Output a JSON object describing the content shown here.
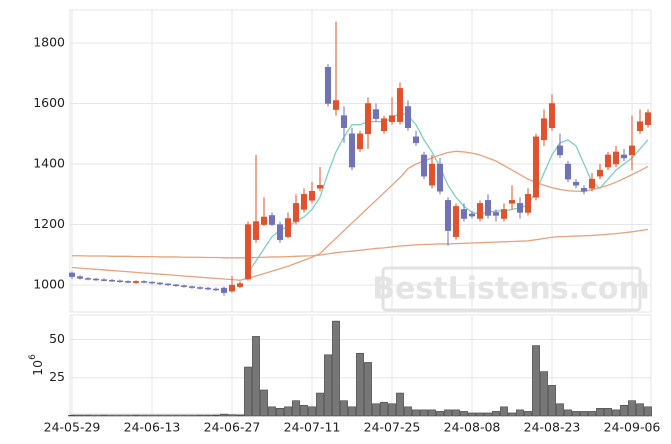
{
  "chart_data": {
    "type": "candlestick",
    "watermark": "BestListens.com",
    "up_color": "#e0522a",
    "down_color": "#6f72b6",
    "grid": true,
    "categories": [
      "24-05-29",
      null,
      null,
      null,
      null,
      null,
      null,
      null,
      null,
      null,
      "24-06-13",
      null,
      null,
      null,
      null,
      null,
      null,
      null,
      null,
      null,
      "24-06-27",
      null,
      null,
      null,
      null,
      null,
      null,
      null,
      null,
      null,
      "24-07-11",
      null,
      null,
      null,
      null,
      null,
      null,
      null,
      null,
      null,
      "24-07-25",
      null,
      null,
      null,
      null,
      null,
      null,
      null,
      null,
      null,
      "24-08-08",
      null,
      null,
      null,
      null,
      null,
      null,
      null,
      null,
      null,
      "24-08-23",
      null,
      null,
      null,
      null,
      null,
      null,
      null,
      null,
      null,
      "24-09-06",
      null,
      null
    ],
    "open": [
      1040,
      1028,
      1022,
      1020,
      1018,
      1016,
      1014,
      1012,
      1008,
      1012,
      1010,
      1007,
      1004,
      1001,
      998,
      995,
      992,
      990,
      987,
      990,
      980,
      995,
      1020,
      1150,
      1200,
      1230,
      1200,
      1160,
      1210,
      1250,
      1280,
      1320,
      1720,
      1580,
      1560,
      1500,
      1450,
      1500,
      1580,
      1510,
      1540,
      1540,
      1590,
      1490,
      1430,
      1330,
      1400,
      1280,
      1160,
      1250,
      1235,
      1220,
      1280,
      1240,
      1220,
      1270,
      1270,
      1240,
      1290,
      1480,
      1520,
      1460,
      1400,
      1340,
      1320,
      1320,
      1360,
      1390,
      1400,
      1430,
      1430,
      1510,
      1530
    ],
    "high": [
      1045,
      1032,
      1026,
      1024,
      1022,
      1020,
      1018,
      1016,
      1016,
      1016,
      1012,
      1010,
      1006,
      1004,
      1002,
      998,
      996,
      994,
      992,
      995,
      1030,
      1012,
      1210,
      1430,
      1290,
      1240,
      1210,
      1240,
      1300,
      1320,
      1340,
      1390,
      1730,
      1870,
      1590,
      1520,
      1510,
      1620,
      1600,
      1560,
      1620,
      1670,
      1610,
      1510,
      1440,
      1430,
      1420,
      1290,
      1270,
      1270,
      1245,
      1280,
      1300,
      1250,
      1270,
      1330,
      1290,
      1320,
      1500,
      1580,
      1630,
      1500,
      1410,
      1350,
      1330,
      1370,
      1400,
      1440,
      1460,
      1450,
      1560,
      1580,
      1580
    ],
    "low": [
      1020,
      1018,
      1016,
      1014,
      1012,
      1010,
      1008,
      1006,
      1004,
      1006,
      1002,
      1000,
      997,
      994,
      991,
      988,
      985,
      982,
      980,
      965,
      975,
      990,
      1015,
      1140,
      1195,
      1195,
      1140,
      1155,
      1200,
      1240,
      1270,
      1310,
      1590,
      1560,
      1470,
      1380,
      1440,
      1450,
      1540,
      1500,
      1530,
      1530,
      1510,
      1460,
      1350,
      1320,
      1300,
      1130,
      1150,
      1210,
      1220,
      1210,
      1220,
      1210,
      1210,
      1250,
      1220,
      1230,
      1280,
      1460,
      1510,
      1420,
      1340,
      1320,
      1300,
      1310,
      1350,
      1380,
      1390,
      1410,
      1380,
      1500,
      1520
    ],
    "close": [
      1028,
      1022,
      1020,
      1018,
      1016,
      1014,
      1012,
      1010,
      1012,
      1010,
      1007,
      1004,
      1001,
      998,
      995,
      992,
      990,
      987,
      985,
      975,
      1000,
      1005,
      1200,
      1210,
      1225,
      1200,
      1150,
      1220,
      1270,
      1300,
      1310,
      1330,
      1600,
      1610,
      1520,
      1390,
      1500,
      1600,
      1550,
      1550,
      1560,
      1650,
      1520,
      1470,
      1360,
      1400,
      1310,
      1180,
      1260,
      1220,
      1228,
      1270,
      1230,
      1230,
      1250,
      1280,
      1240,
      1300,
      1490,
      1550,
      1600,
      1430,
      1350,
      1330,
      1310,
      1350,
      1380,
      1430,
      1440,
      1420,
      1460,
      1540,
      1570
    ],
    "lines": [
      {
        "color": "#7fd0bf",
        "values": [
          null,
          null,
          null,
          null,
          null,
          null,
          null,
          null,
          null,
          null,
          null,
          null,
          null,
          null,
          null,
          null,
          null,
          null,
          null,
          null,
          null,
          null,
          1040,
          1080,
          1120,
          1160,
          1180,
          1195,
          1210,
          1225,
          1250,
          1290,
          1370,
          1440,
          1490,
          1530,
          1530,
          1540,
          1540,
          1540,
          1550,
          1570,
          1560,
          1530,
          1480,
          1440,
          1390,
          1330,
          1290,
          1260,
          1240,
          1235,
          1240,
          1245,
          1245,
          1250,
          1255,
          1265,
          1310,
          1370,
          1430,
          1470,
          1480,
          1460,
          1400,
          1340,
          1320,
          1350,
          1380,
          1400,
          1420,
          1450,
          1480
        ]
      },
      {
        "color": "#e8a27e",
        "values": [
          1058,
          1056,
          1054,
          1052,
          1050,
          1048,
          1046,
          1044,
          1042,
          1040,
          1038,
          1036,
          1034,
          1032,
          1030,
          1028,
          1026,
          1024,
          1022,
          1020,
          1018,
          1016,
          1022,
          1030,
          1038,
          1046,
          1054,
          1062,
          1072,
          1082,
          1092,
          1104,
          1130,
          1155,
          1180,
          1205,
          1230,
          1255,
          1280,
          1305,
          1330,
          1355,
          1385,
          1400,
          1410,
          1420,
          1430,
          1438,
          1442,
          1440,
          1436,
          1430,
          1420,
          1410,
          1395,
          1380,
          1365,
          1350,
          1340,
          1330,
          1322,
          1316,
          1312,
          1310,
          1310,
          1315,
          1322,
          1330,
          1340,
          1352,
          1365,
          1378,
          1392
        ]
      },
      {
        "color": "#e8a27e",
        "values": [
          1097,
          1097,
          1096,
          1096,
          1096,
          1095,
          1095,
          1095,
          1094,
          1094,
          1094,
          1093,
          1093,
          1093,
          1092,
          1092,
          1092,
          1091,
          1091,
          1090,
          1090,
          1090,
          1090,
          1091,
          1092,
          1093,
          1093,
          1094,
          1095,
          1096,
          1097,
          1099,
          1103,
          1107,
          1110,
          1112,
          1115,
          1118,
          1121,
          1123,
          1126,
          1129,
          1131,
          1133,
          1134,
          1135,
          1136,
          1136,
          1137,
          1138,
          1139,
          1140,
          1141,
          1142,
          1143,
          1144,
          1145,
          1146,
          1150,
          1154,
          1158,
          1160,
          1161,
          1162,
          1163,
          1164,
          1166,
          1168,
          1170,
          1173,
          1176,
          1180,
          1184
        ]
      }
    ],
    "ylim": [
      911,
      1909
    ],
    "yticks": [
      1000,
      1200,
      1400,
      1600,
      1800
    ],
    "volume": {
      "color": "#777777",
      "unit": {
        "base": "10",
        "exponent": "6"
      },
      "values": [
        0.4,
        0.3,
        0.3,
        0.2,
        0.3,
        0.2,
        0.2,
        0.2,
        0.3,
        0.2,
        0.2,
        0.2,
        0.2,
        0.2,
        0.2,
        0.2,
        0.3,
        0.3,
        0.4,
        1.2,
        0.8,
        0.6,
        32,
        52,
        17,
        6,
        5,
        6,
        10,
        7,
        6,
        15,
        40,
        62,
        10,
        6,
        41,
        35,
        8,
        9,
        8,
        15,
        6,
        4,
        4,
        4,
        3,
        4,
        4,
        3,
        2,
        2,
        2,
        3,
        6,
        2,
        4,
        3,
        46,
        29,
        20,
        8,
        4,
        3,
        3,
        3,
        5,
        5,
        4,
        7,
        10,
        8,
        6
      ],
      "ylim": [
        0,
        66
      ],
      "yticks": [
        25,
        50
      ]
    }
  }
}
